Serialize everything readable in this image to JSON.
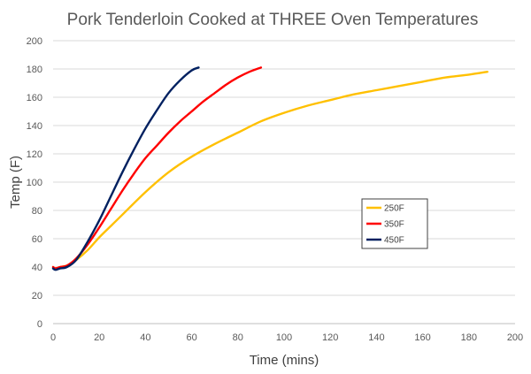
{
  "chart_data": {
    "type": "line",
    "title": "Pork Tenderloin Cooked at THREE Oven Temperatures",
    "xlabel": "Time (mins)",
    "ylabel": "Temp (F)",
    "xlim": [
      0,
      200
    ],
    "ylim": [
      0,
      200
    ],
    "xticks": [
      0,
      20,
      40,
      60,
      80,
      100,
      120,
      140,
      160,
      180,
      200
    ],
    "yticks": [
      0,
      20,
      40,
      60,
      80,
      100,
      120,
      140,
      160,
      180,
      200
    ],
    "grid": {
      "horizontal": true,
      "vertical": false
    },
    "legend_position": "right",
    "series": [
      {
        "name": "250F",
        "color": "#FFC000",
        "x": [
          0,
          1,
          3,
          6,
          10,
          15,
          20,
          25,
          30,
          40,
          50,
          60,
          70,
          80,
          90,
          100,
          110,
          120,
          130,
          140,
          150,
          160,
          170,
          180,
          188
        ],
        "y": [
          40,
          39,
          40,
          41,
          45,
          52,
          61,
          69,
          77,
          93,
          107,
          118,
          127,
          135,
          143,
          149,
          154,
          158,
          162,
          165,
          168,
          171,
          174,
          176,
          178
        ]
      },
      {
        "name": "350F",
        "color": "#FF0000",
        "x": [
          0,
          1,
          3,
          6,
          10,
          15,
          20,
          25,
          30,
          35,
          40,
          45,
          50,
          55,
          60,
          65,
          70,
          75,
          80,
          85,
          90
        ],
        "y": [
          40,
          39,
          40,
          41,
          46,
          56,
          68,
          81,
          94,
          106,
          117,
          126,
          135,
          143,
          150,
          157,
          163,
          169,
          174,
          178,
          181
        ]
      },
      {
        "name": "450F",
        "color": "#002060",
        "x": [
          0,
          1,
          3,
          6,
          10,
          15,
          20,
          25,
          30,
          35,
          40,
          45,
          50,
          55,
          60,
          63
        ],
        "y": [
          39,
          38,
          39,
          40,
          45,
          58,
          73,
          90,
          107,
          123,
          138,
          151,
          163,
          172,
          179,
          181
        ]
      }
    ]
  }
}
